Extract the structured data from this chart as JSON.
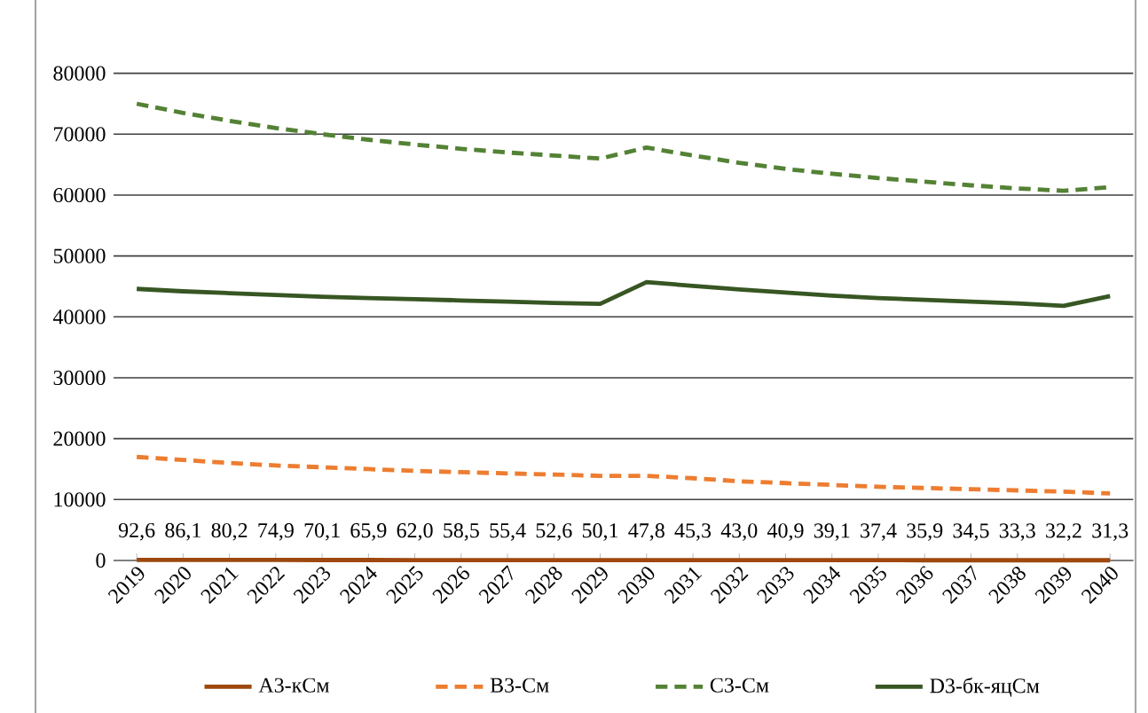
{
  "chart_data": {
    "type": "line",
    "categories": [
      "2019",
      "2020",
      "2021",
      "2022",
      "2023",
      "2024",
      "2025",
      "2026",
      "2027",
      "2028",
      "2029",
      "2030",
      "2031",
      "2032",
      "2033",
      "2034",
      "2035",
      "2036",
      "2037",
      "2038",
      "2039",
      "2040"
    ],
    "series": [
      {
        "name": "A3-кСм",
        "color": "#9e480e",
        "line_style": "solid",
        "values": [
          92.6,
          86.1,
          80.2,
          74.9,
          70.1,
          65.9,
          62.0,
          58.5,
          55.4,
          52.6,
          50.1,
          47.8,
          45.3,
          43.0,
          40.9,
          39.1,
          37.4,
          35.9,
          34.5,
          33.3,
          32.2,
          31.3
        ],
        "value_labels": [
          "92,6",
          "86,1",
          "80,2",
          "74,9",
          "70,1",
          "65,9",
          "62,0",
          "58,5",
          "55,4",
          "52,6",
          "50,1",
          "47,8",
          "45,3",
          "43,0",
          "40,9",
          "39,1",
          "37,4",
          "35,9",
          "34,5",
          "33,3",
          "32,2",
          "31,3"
        ]
      },
      {
        "name": "B3-См",
        "color": "#ed7d31",
        "line_style": "dashed",
        "values": [
          17000,
          16500,
          16000,
          15600,
          15300,
          15000,
          14700,
          14500,
          14300,
          14100,
          13900,
          13900,
          13500,
          13000,
          12700,
          12400,
          12100,
          11900,
          11700,
          11500,
          11300,
          11000
        ]
      },
      {
        "name": "C3-См",
        "color": "#548235",
        "line_style": "dashed",
        "values": [
          75000,
          73500,
          72200,
          71000,
          70000,
          69100,
          68300,
          67600,
          67000,
          66500,
          66000,
          67800,
          66500,
          65300,
          64300,
          63500,
          62800,
          62200,
          61600,
          61100,
          60700,
          61300
        ]
      },
      {
        "name": "D3-бк-яцСм",
        "color": "#375623",
        "line_style": "solid",
        "values": [
          44600,
          44200,
          43900,
          43600,
          43300,
          43100,
          42900,
          42700,
          42500,
          42300,
          42150,
          45700,
          45100,
          44500,
          44000,
          43500,
          43100,
          42800,
          42500,
          42200,
          41800,
          43400
        ]
      }
    ],
    "ylim": [
      0,
      80000
    ],
    "yticks": [
      0,
      10000,
      20000,
      30000,
      40000,
      50000,
      60000,
      70000,
      80000
    ],
    "grid": "y",
    "legend": "bottom"
  }
}
